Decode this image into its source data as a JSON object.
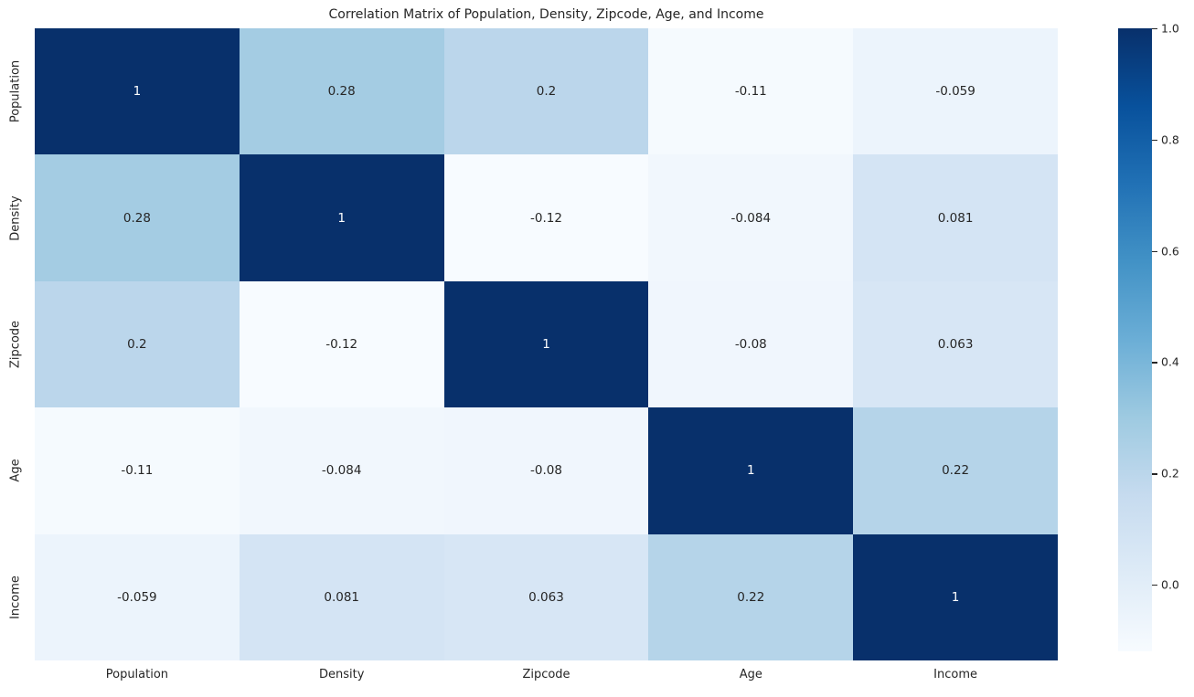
{
  "chart_data": {
    "type": "heatmap",
    "title": "Correlation Matrix of Population, Density, Zipcode, Age, and Income",
    "categories": [
      "Population",
      "Density",
      "Zipcode",
      "Age",
      "Income"
    ],
    "rows": [
      "Population",
      "Density",
      "Zipcode",
      "Age",
      "Income"
    ],
    "matrix": [
      [
        1,
        0.28,
        0.2,
        -0.11,
        -0.059
      ],
      [
        0.28,
        1,
        -0.12,
        -0.084,
        0.081
      ],
      [
        0.2,
        -0.12,
        1,
        -0.08,
        0.063
      ],
      [
        -0.11,
        -0.084,
        -0.08,
        1,
        0.22
      ],
      [
        -0.059,
        0.081,
        0.063,
        0.22,
        1
      ]
    ],
    "cell_labels": [
      [
        "1",
        "0.28",
        "0.2",
        "-0.11",
        "-0.059"
      ],
      [
        "0.28",
        "1",
        "-0.12",
        "-0.084",
        "0.081"
      ],
      [
        "0.2",
        "-0.12",
        "1",
        "-0.08",
        "0.063"
      ],
      [
        "-0.11",
        "-0.084",
        "-0.08",
        "1",
        "0.22"
      ],
      [
        "-0.059",
        "0.081",
        "0.063",
        "0.22",
        "1"
      ]
    ],
    "vmin": -0.12,
    "vmax": 1.0,
    "colormap": {
      "name": "Blues",
      "stops": [
        "#f7fbff",
        "#deebf7",
        "#c6dbef",
        "#9ecae1",
        "#6baed6",
        "#4292c6",
        "#2171b5",
        "#08519c",
        "#08306b"
      ]
    },
    "colorbar_ticks": [
      {
        "label": "1.0",
        "value": 1.0
      },
      {
        "label": "0.8",
        "value": 0.8
      },
      {
        "label": "0.6",
        "value": 0.6
      },
      {
        "label": "0.4",
        "value": 0.4
      },
      {
        "label": "0.2",
        "value": 0.2
      },
      {
        "label": "0.0",
        "value": 0.0
      }
    ],
    "annot_color_dark": "#262626",
    "annot_color_light": "#ffffff",
    "legend_position": "right",
    "grid": false
  }
}
